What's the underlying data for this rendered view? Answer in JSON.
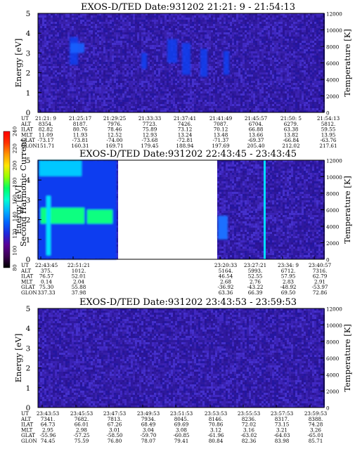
{
  "colorbar": {
    "label": "Second Harmonic Current",
    "ticks": [
      "80",
      "100",
      "120",
      "140",
      "160",
      "180",
      "200",
      "220",
      "240"
    ],
    "colors": [
      "#000000",
      "#3c0052",
      "#5a0096",
      "#1e28dc",
      "#0064ff",
      "#00b4ff",
      "#00ffd2",
      "#00ff64",
      "#96ff00",
      "#ffe600",
      "#ff9600",
      "#ff3200",
      "#ff0000"
    ]
  },
  "chart_data": [
    {
      "type": "heatmap",
      "title": "EXOS-D/TED   Date:931202  21:21: 9 - 21:54:13",
      "ylabel": "Energy [eV]",
      "ylabel_right": "Temperature [K]",
      "ylim": [
        0,
        5
      ],
      "yticks": [
        "0",
        "1",
        "2",
        "3",
        "4",
        "5"
      ],
      "ylim_right": [
        0,
        12000
      ],
      "yticks_right": [
        "0",
        "2000",
        "4000",
        "6000",
        "8000",
        "10000",
        "12000"
      ],
      "row_labels": [
        "UT",
        "ALT",
        "ILAT",
        "MLT",
        "GLAT",
        "GLON"
      ],
      "columns": [
        [
          "21:21: 9",
          "8354.",
          "82.82",
          "11.09",
          "-73.17",
          "151.71"
        ],
        [
          "21:25:17",
          "8187.",
          "80.76",
          "11.93",
          "-73.81",
          "160.31"
        ],
        [
          "21:29:25",
          "7976.",
          "78.46",
          "12.52",
          "-74.00",
          "169.71"
        ],
        [
          "21:33:33",
          "7723.",
          "75.89",
          "12.93",
          "-73.68",
          "179.45"
        ],
        [
          "21:37:41",
          "7426.",
          "73.12",
          "13.24",
          "-72.81",
          "188.94"
        ],
        [
          "21:41:49",
          "7087.",
          "70.12",
          "13.48",
          "-71.37",
          "197.69"
        ],
        [
          "21:45:57",
          "6704.",
          "66.88",
          "13.66",
          "-69.37",
          "205.40"
        ],
        [
          "21:50: 5",
          "6279.",
          "63.38",
          "13.82",
          "-66.84",
          "212.02"
        ],
        [
          "21:54:13",
          "5812.",
          "59.55",
          "13.95",
          "-63.76",
          "217.61"
        ]
      ]
    },
    {
      "type": "heatmap",
      "title": "EXOS-D/TED   Date:931202  22:43:45 - 23:43:45",
      "ylabel": "Energy [eV]",
      "ylabel_right": "Temperature [K]",
      "ylim": [
        0,
        5
      ],
      "yticks": [
        "0",
        "1",
        "2",
        "3",
        "4",
        "5"
      ],
      "ylim_right": [
        0,
        12000
      ],
      "yticks_right": [
        "0",
        "2000",
        "4000",
        "6000",
        "8000",
        "10000",
        "12000"
      ],
      "row_labels": [
        "UT",
        "ALT",
        "ILAT",
        "MLT",
        "GLAT",
        "GLON"
      ],
      "columns": [
        [
          "22:43:45",
          "375.",
          "76.57",
          "0.14",
          "75.30",
          "337.33"
        ],
        [
          "22:51:21",
          "1012.",
          "52.01",
          "2.04",
          "55.88",
          "37.98"
        ],
        [
          "23:20:33",
          "5164.",
          "46.54",
          "2.68",
          "-36.92",
          "63.36"
        ],
        [
          "23:27:21",
          "5993.",
          "52.55",
          "2.76",
          "-43.22",
          "66.39"
        ],
        [
          "23:34: 9",
          "6712.",
          "57.95",
          "2.83",
          "-48.92",
          "69.50"
        ],
        [
          "23:40:57",
          "7316.",
          "62.79",
          "2.91",
          "-53.97",
          "72.86"
        ]
      ]
    },
    {
      "type": "heatmap",
      "title": "EXOS-D/TED   Date:931202  23:43:53 - 23:59:53",
      "ylabel": "Energy [eV]",
      "ylabel_right": "Temperature [K]",
      "ylim": [
        0,
        5
      ],
      "yticks": [
        "0",
        "1",
        "2",
        "3",
        "4",
        "5"
      ],
      "ylim_right": [
        0,
        12000
      ],
      "yticks_right": [
        "0",
        "2000",
        "4000",
        "6000",
        "8000",
        "10000",
        "12000"
      ],
      "row_labels": [
        "UT",
        "ALT",
        "ILAT",
        "MLT",
        "GLAT",
        "GLON"
      ],
      "columns": [
        [
          "23:43:53",
          "7341.",
          "64.73",
          "2.95",
          "-55.96",
          "74.45"
        ],
        [
          "23:45:53",
          "7682.",
          "66.01",
          "2.98",
          "-57.25",
          "75.59"
        ],
        [
          "23:47:53",
          "7813.",
          "67.26",
          "3.01",
          "-58.50",
          "76.80"
        ],
        [
          "23:49:53",
          "7934.",
          "68.49",
          "3.04",
          "-59.70",
          "78.07"
        ],
        [
          "23:51:53",
          "8045.",
          "69.69",
          "3.08",
          "-60.85",
          "79.41"
        ],
        [
          "23:53:53",
          "8146.",
          "70.86",
          "3.12",
          "-61.96",
          "80.84"
        ],
        [
          "23:55:53",
          "8236.",
          "72.02",
          "3.16",
          "-63.02",
          "82.36"
        ],
        [
          "23:57:53",
          "8317.",
          "73.15",
          "3.21",
          "-64.03",
          "83.98"
        ],
        [
          "23:59:53",
          "8388.",
          "74.28",
          "3.26",
          "-65.01",
          "85.71"
        ]
      ]
    }
  ]
}
